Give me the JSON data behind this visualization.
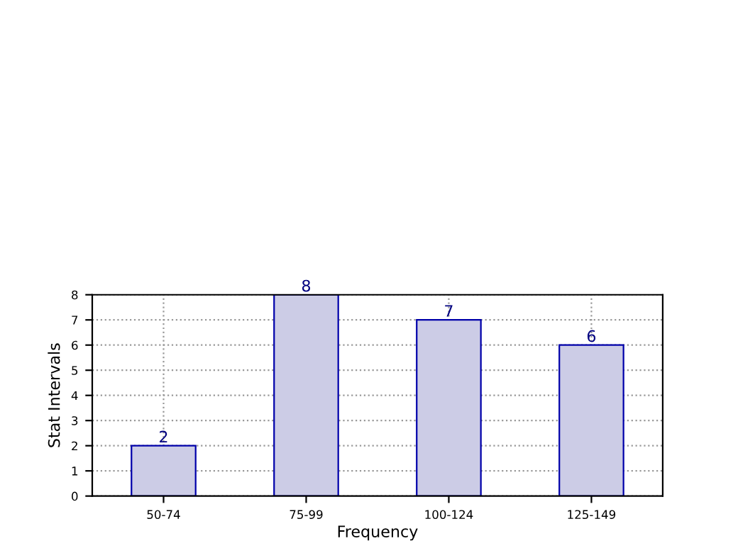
{
  "chart_data": {
    "type": "bar",
    "categories": [
      "50-74",
      "75-99",
      "100-124",
      "125-149"
    ],
    "values": [
      2,
      8,
      7,
      6
    ],
    "color": "#cccce6",
    "xlabel": "Frequency",
    "ylabel": "Stat Intervals",
    "ylim": [
      0,
      8
    ],
    "yticks": [
      0,
      1,
      2,
      3,
      4,
      5,
      6,
      7,
      8
    ],
    "grid": true,
    "data_labels": true
  }
}
